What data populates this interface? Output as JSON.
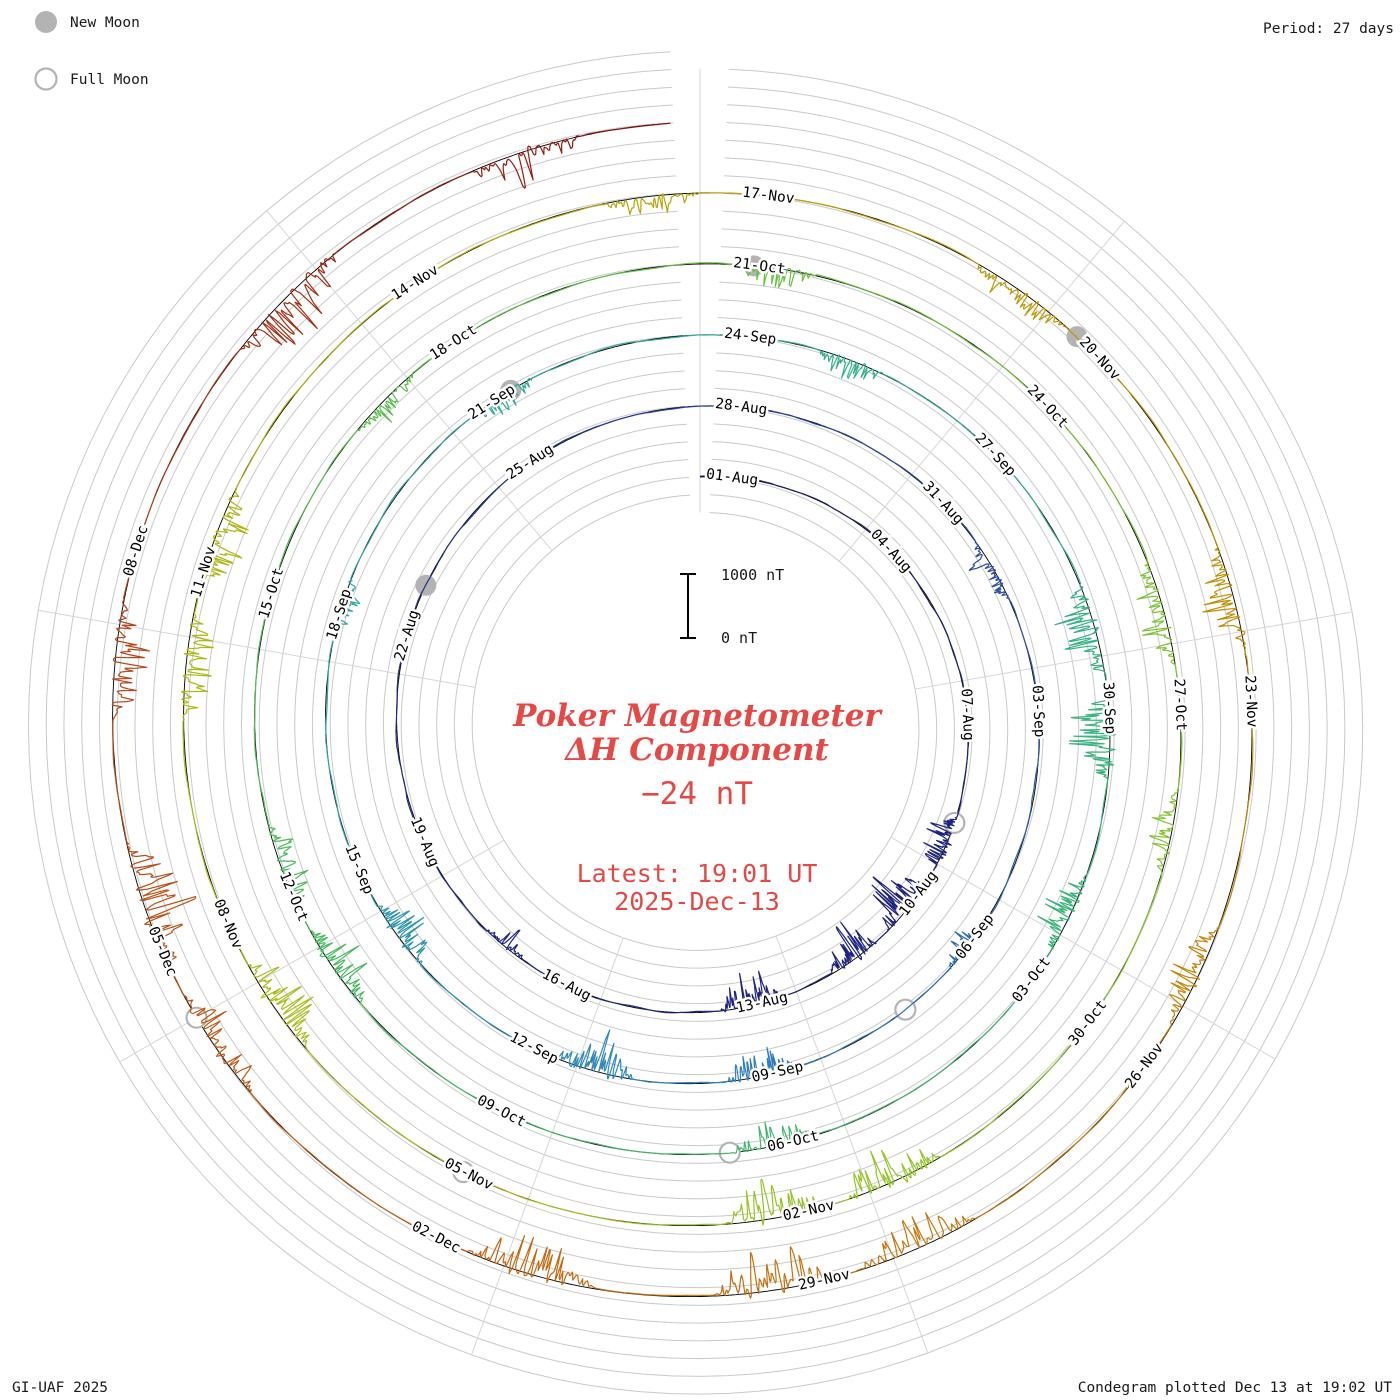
{
  "header": {
    "period_label": "Period: 27 days"
  },
  "legend": {
    "new_moon": "New Moon",
    "full_moon": "Full Moon"
  },
  "footer": {
    "credit": "GI-UAF 2025",
    "plotted_note": "Condegram plotted Dec 13 at 19:02 UT"
  },
  "center": {
    "title_line1": "Poker Magnetometer",
    "title_line2": "ΔH Component",
    "current_value": "−24 nT",
    "latest_line1": "Latest: 19:01 UT",
    "latest_line2": "2025-Dec-13"
  },
  "scalebar": {
    "top_label": "1000 nT",
    "bottom_label": "0 nT",
    "nT": 1000
  },
  "chart_data": {
    "type": "line",
    "subtype": "condegram-polar-spiral",
    "title": "Poker Magnetometer ΔH Component",
    "period_days": 27,
    "days_per_tick": 3,
    "total_days": 134.79,
    "start_label": "01-Aug",
    "end": {
      "date": "2025-Dec-13",
      "time_ut": "19:01"
    },
    "latest_value_nT": -24,
    "scale": {
      "label_top": "1000 nT",
      "label_bottom": "0 nT",
      "nT": 1000
    },
    "date_ticks": [
      [
        0,
        "01-Aug"
      ],
      [
        3,
        "04-Aug"
      ],
      [
        6,
        "07-Aug"
      ],
      [
        9,
        "10-Aug"
      ],
      [
        12,
        "13-Aug"
      ],
      [
        15,
        "16-Aug"
      ],
      [
        18,
        "19-Aug"
      ],
      [
        21,
        "22-Aug"
      ],
      [
        24,
        "25-Aug"
      ],
      [
        27,
        "28-Aug"
      ],
      [
        30,
        "31-Aug"
      ],
      [
        33,
        "03-Sep"
      ],
      [
        36,
        "06-Sep"
      ],
      [
        39,
        "09-Sep"
      ],
      [
        42,
        "12-Sep"
      ],
      [
        45,
        "15-Sep"
      ],
      [
        48,
        "18-Sep"
      ],
      [
        51,
        "21-Sep"
      ],
      [
        54,
        "24-Sep"
      ],
      [
        57,
        "27-Sep"
      ],
      [
        60,
        "30-Sep"
      ],
      [
        63,
        "03-Oct"
      ],
      [
        66,
        "06-Oct"
      ],
      [
        69,
        "09-Oct"
      ],
      [
        72,
        "12-Oct"
      ],
      [
        75,
        "15-Oct"
      ],
      [
        78,
        "18-Oct"
      ],
      [
        81,
        "21-Oct"
      ],
      [
        84,
        "24-Oct"
      ],
      [
        87,
        "27-Oct"
      ],
      [
        90,
        "30-Oct"
      ],
      [
        93,
        "02-Nov"
      ],
      [
        96,
        "05-Nov"
      ],
      [
        99,
        "08-Nov"
      ],
      [
        102,
        "11-Nov"
      ],
      [
        105,
        "14-Nov"
      ],
      [
        108,
        "17-Nov"
      ],
      [
        111,
        "20-Nov"
      ],
      [
        114,
        "23-Nov"
      ],
      [
        117,
        "26-Nov"
      ],
      [
        120,
        "29-Nov"
      ],
      [
        123,
        "02-Dec"
      ],
      [
        126,
        "05-Dec"
      ],
      [
        129,
        "08-Dec"
      ]
    ],
    "moon_events": {
      "new": [
        [
          22.3,
          "23-Aug"
        ],
        [
          51.8,
          "21-Sep"
        ],
        [
          81.5,
          "21-Oct"
        ],
        [
          111.3,
          "20-Nov"
        ]
      ],
      "full": [
        [
          8.3,
          "09-Aug"
        ],
        [
          37.8,
          "07-Sep"
        ],
        [
          67.2,
          "07-Oct"
        ],
        [
          96.6,
          "05-Nov"
        ],
        [
          126.0,
          "04-Dec"
        ]
      ]
    },
    "disturbed_intervals": [
      [
        8.2,
        9.1,
        520
      ],
      [
        9.3,
        10.3,
        820
      ],
      [
        10.5,
        11.4,
        700
      ],
      [
        12.2,
        13.2,
        620
      ],
      [
        16.3,
        17.0,
        320
      ],
      [
        31.2,
        32.1,
        360
      ],
      [
        36.3,
        37.1,
        300
      ],
      [
        39.3,
        40.2,
        520
      ],
      [
        41.3,
        42.3,
        640
      ],
      [
        44.2,
        45.1,
        520
      ],
      [
        48.3,
        49.0,
        260
      ],
      [
        51.3,
        52.1,
        300
      ],
      [
        55.3,
        56.1,
        360
      ],
      [
        59.2,
        60.2,
        700
      ],
      [
        60.4,
        61.3,
        920
      ],
      [
        62.3,
        63.2,
        620
      ],
      [
        66.3,
        67.2,
        460
      ],
      [
        71.3,
        72.2,
        520
      ],
      [
        72.4,
        73.3,
        460
      ],
      [
        77.3,
        78.1,
        300
      ],
      [
        81.3,
        82.1,
        360
      ],
      [
        86.2,
        87.2,
        540
      ],
      [
        88.3,
        89.1,
        420
      ],
      [
        92.3,
        93.2,
        820
      ],
      [
        93.4,
        94.3,
        700
      ],
      [
        98.3,
        99.2,
        720
      ],
      [
        101.3,
        102.2,
        620
      ],
      [
        102.4,
        103.3,
        660
      ],
      [
        107.2,
        108.0,
        300
      ],
      [
        110.3,
        111.2,
        420
      ],
      [
        113.3,
        114.2,
        560
      ],
      [
        116.3,
        117.2,
        520
      ],
      [
        119.3,
        120.3,
        560
      ],
      [
        120.5,
        121.4,
        760
      ],
      [
        122.3,
        123.3,
        660
      ],
      [
        125.3,
        126.2,
        520
      ],
      [
        126.4,
        127.4,
        820
      ],
      [
        128.3,
        129.2,
        620
      ],
      [
        131.2,
        132.2,
        720
      ],
      [
        133.3,
        134.2,
        520
      ]
    ],
    "colormap_stops": [
      [
        0.0,
        "#1c1c74"
      ],
      [
        0.16,
        "#1f2a8e"
      ],
      [
        0.24,
        "#2a52b0"
      ],
      [
        0.3,
        "#2f82c0"
      ],
      [
        0.35,
        "#2fa4a6"
      ],
      [
        0.41,
        "#31b090"
      ],
      [
        0.47,
        "#3bb476"
      ],
      [
        0.54,
        "#48bc59"
      ],
      [
        0.61,
        "#68c23b"
      ],
      [
        0.68,
        "#90c62a"
      ],
      [
        0.74,
        "#a8bf1a"
      ],
      [
        0.79,
        "#b4a908"
      ],
      [
        0.84,
        "#c19004"
      ],
      [
        0.88,
        "#c77b09"
      ],
      [
        0.92,
        "#c66113"
      ],
      [
        0.955,
        "#b44618"
      ],
      [
        0.98,
        "#a02a13"
      ],
      [
        1.0,
        "#8d1010"
      ]
    ],
    "grid": {
      "rings": 26,
      "radial_sectors": 9
    },
    "colors": {
      "baseline": "#000000",
      "grid": "#c9c9c9",
      "moon": "#b3b3b3",
      "annotation_red": "#e64945"
    }
  }
}
